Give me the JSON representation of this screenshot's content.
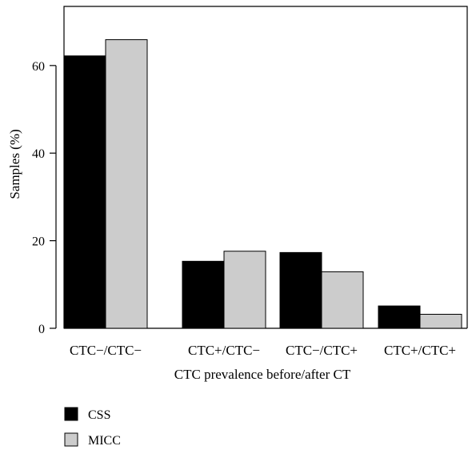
{
  "chart_data": {
    "type": "bar",
    "title": "",
    "xlabel": "CTC prevalence before/after CT",
    "ylabel": "Samples (%)",
    "categories": [
      "CTC−/CTC−",
      "CTC+/CTC−",
      "CTC−/CTC+",
      "CTC+/CTC+"
    ],
    "series": [
      {
        "name": "CSS",
        "color": "#000000",
        "values": [
          62.2,
          15.3,
          17.3,
          5.1
        ]
      },
      {
        "name": "MICC",
        "color": "#cccccc",
        "values": [
          65.9,
          17.6,
          12.9,
          3.2
        ]
      }
    ],
    "ylim": [
      0,
      73.5
    ],
    "yticks": [
      0,
      20,
      40,
      60
    ],
    "grid": false,
    "legend_position": "bottom-left"
  }
}
